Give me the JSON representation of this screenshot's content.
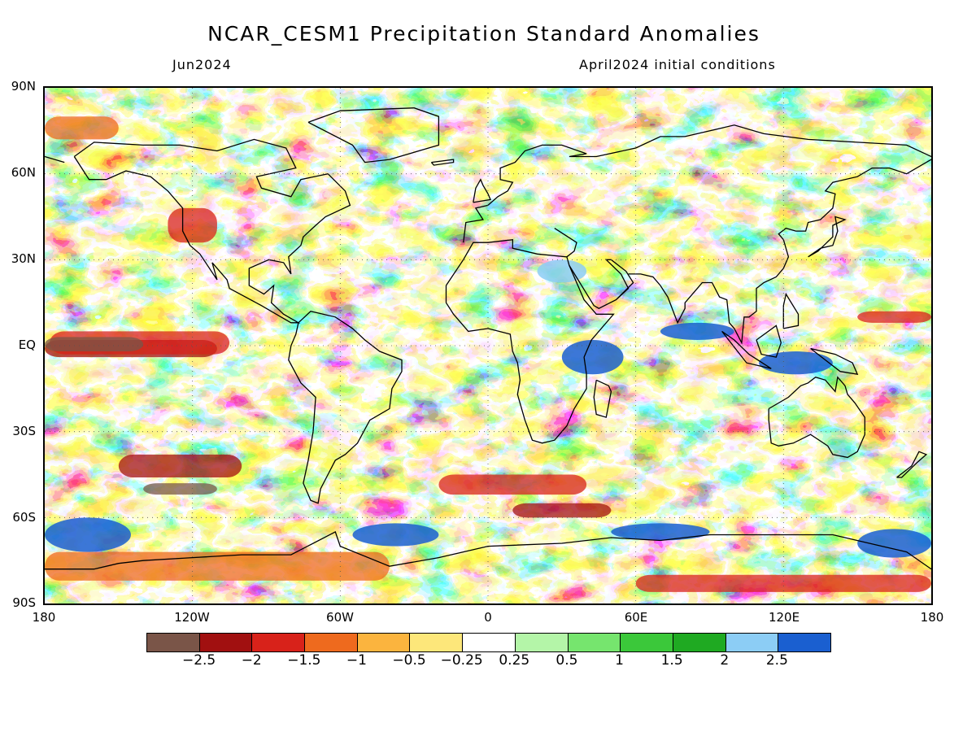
{
  "title": "NCAR_CESM1 Precipitation Standard Anomalies",
  "subtitle_left": "Jun2024",
  "subtitle_right": "April2024 initial conditions",
  "lat_labels": [
    "90N",
    "60N",
    "30N",
    "EQ",
    "30S",
    "60S",
    "90S"
  ],
  "lon_labels": [
    "180",
    "120W",
    "60W",
    "0",
    "60E",
    "120E",
    "180"
  ],
  "colorbar": {
    "labels": [
      "-2.5",
      "-2",
      "-1.5",
      "-1",
      "-0.5",
      "-0.25",
      "0.25",
      "0.5",
      "1",
      "1.5",
      "2",
      "2.5"
    ],
    "colors": [
      "#7a5548",
      "#a11010",
      "#d8221a",
      "#ee6a1e",
      "#fbb43e",
      "#fde77a",
      "#ffffff",
      "#b4f5a8",
      "#76e56e",
      "#3bc83a",
      "#1faa22",
      "#8ccdf5",
      "#1a5fd0"
    ]
  },
  "map": {
    "grid": "on",
    "projection": "cylindrical-equidistant",
    "lon_range": [
      -180,
      180
    ],
    "lat_range": [
      -90,
      90
    ]
  }
}
